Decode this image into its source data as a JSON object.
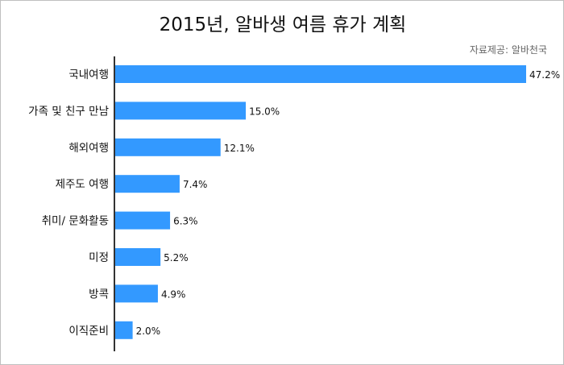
{
  "chart_data": {
    "type": "bar",
    "orientation": "horizontal",
    "title": "2015년, 알바생 여름 휴가 계획",
    "source": "자료제공: 알바천국",
    "categories": [
      "국내여행",
      "가족 및 친구 만남",
      "해외여행",
      "제주도 여행",
      "취미/ 문화활동",
      "미정",
      "방콕",
      "이직준비"
    ],
    "values": [
      47.2,
      15.0,
      12.1,
      7.4,
      6.3,
      5.2,
      4.9,
      2.0
    ],
    "value_labels": [
      "47.2%",
      "15.0%",
      "12.1%",
      "7.4%",
      "6.3%",
      "5.2%",
      "4.9%",
      "2.0%"
    ],
    "xlim": [
      0,
      47.2
    ],
    "bar_color": "#3399ff",
    "grid": false,
    "legend": "none"
  }
}
